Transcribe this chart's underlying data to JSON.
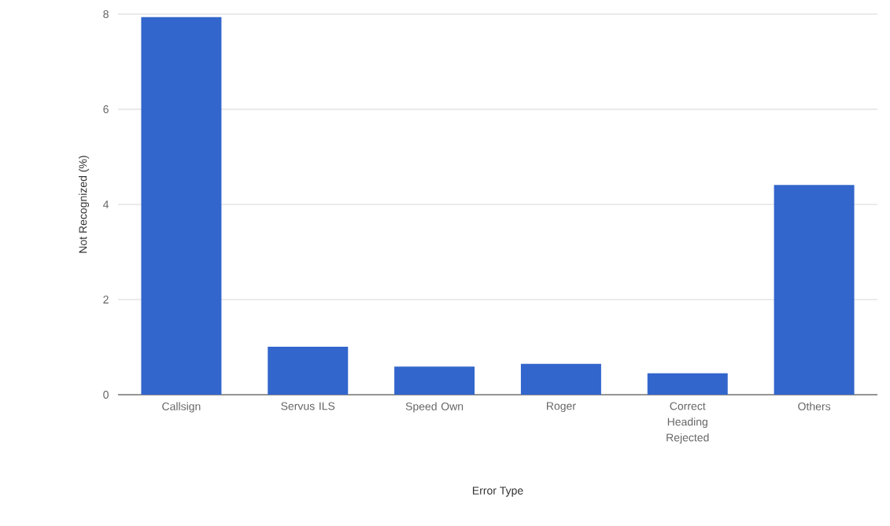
{
  "chart_data": {
    "type": "bar",
    "xlabel": "Error Type",
    "ylabel": "Not Recognized (%)",
    "categories": [
      "Callsign",
      "Servus ILS",
      "Speed Own",
      "Roger",
      "Correct Heading Rejected",
      "Others"
    ],
    "values": [
      7.94,
      1.01,
      0.59,
      0.65,
      0.45,
      4.41
    ],
    "color": "#3366cc",
    "ylim": [
      0,
      8
    ],
    "yticks": [
      0,
      2,
      4,
      6,
      8
    ],
    "grid": "y"
  }
}
